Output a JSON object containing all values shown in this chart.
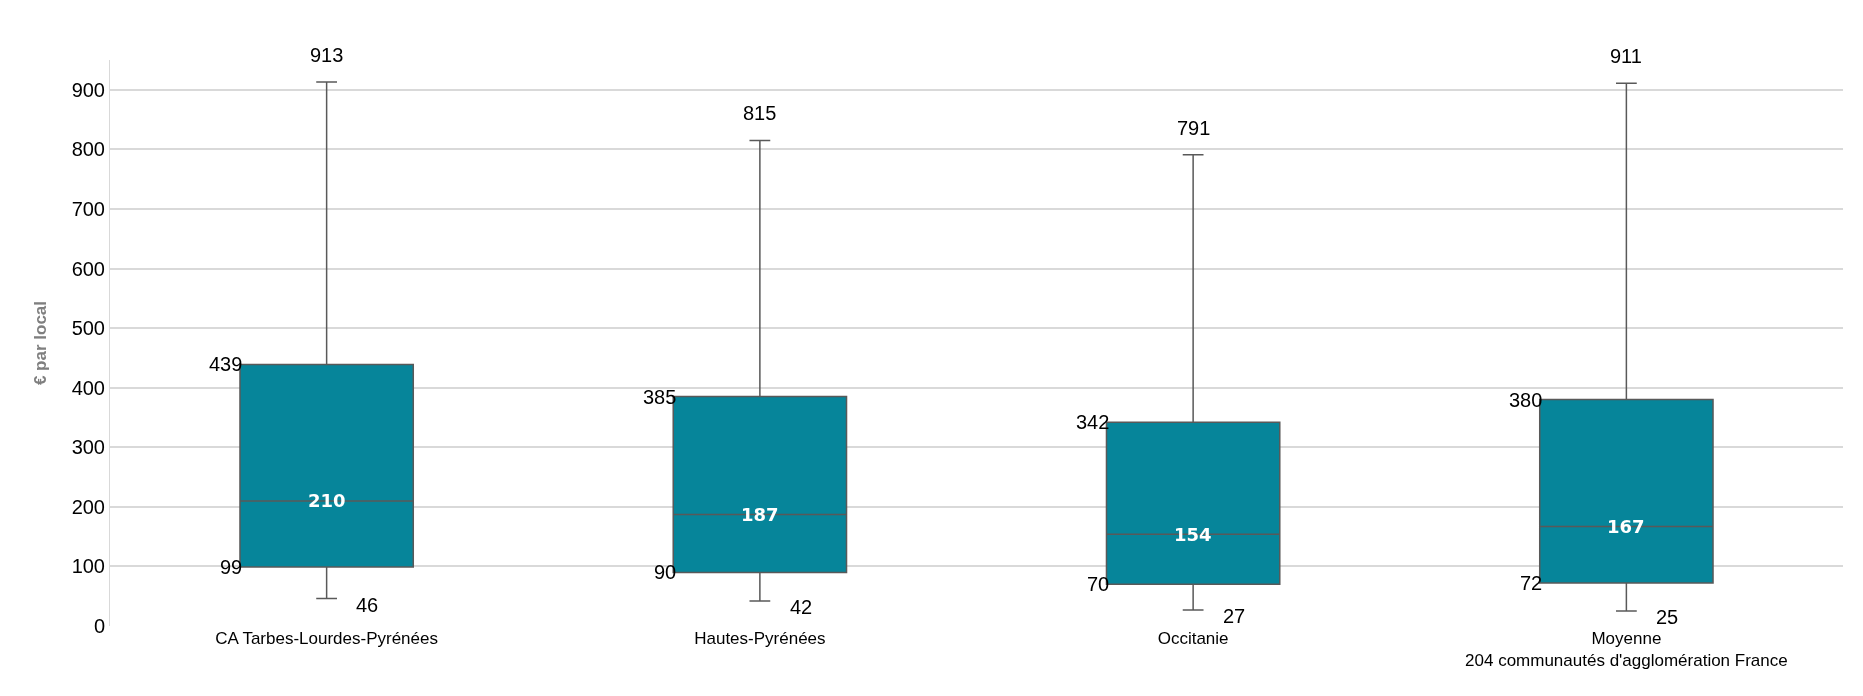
{
  "chart_data": {
    "type": "box",
    "ylabel": "€ par local",
    "categories": [
      "CA Tarbes-Lourdes-Pyrénées",
      "Hautes-Pyrénées",
      "Occitanie",
      "Moyenne\n204 communautés d'agglomération France"
    ],
    "boxes": [
      {
        "low": 46,
        "q1": 99,
        "median": 210,
        "q3": 439,
        "high": 913
      },
      {
        "low": 42,
        "q1": 90,
        "median": 187,
        "q3": 385,
        "high": 815
      },
      {
        "low": 27,
        "q1": 70,
        "median": 154,
        "q3": 342,
        "high": 791
      },
      {
        "low": 25,
        "q1": 72,
        "median": 167,
        "q3": 380,
        "high": 911
      }
    ],
    "color": "#06859a",
    "ylim": [
      0,
      950
    ],
    "yticks": [
      0,
      100,
      200,
      300,
      400,
      500,
      600,
      700,
      800,
      900
    ],
    "grid": "y",
    "annotations": [
      {
        "text": "913",
        "x": "CA Tarbes-Lourdes-Pyrénées",
        "y": 913
      },
      "439",
      {
        "text": "210",
        "x": "CA Tarbes-Lourdes-Pyrénées",
        "y": 210
      },
      "99",
      {
        "text": "46",
        "x": "CA Tarbes-Lourdes-Pyrénées",
        "y": 46
      },
      {
        "text": "815",
        "x": "Hautes-Pyrénées",
        "y": 815
      },
      "385",
      {
        "text": "187",
        "x": "Hautes-Pyrénées",
        "y": 187
      },
      "90",
      {
        "text": "42",
        "x": "Hautes-Pyrénées",
        "y": 42
      },
      {
        "text": "791",
        "x": "Occitanie",
        "y": 791
      },
      "342",
      {
        "text": "154",
        "x": "Occitanie",
        "y": 154
      },
      "70",
      {
        "text": "27",
        "x": "Occitanie",
        "y": 27
      },
      {
        "text": "911",
        "x": "Moyenne\n204 communautés d'agglomération France",
        "y": 911
      },
      "380",
      {
        "text": "167",
        "x": "Moyenne\n204 communautés d'agglomération France",
        "y": 167
      },
      "72",
      {
        "text": "25",
        "x": "Moyenne\n204 communautés d'agglomération France",
        "y": 25
      }
    ]
  }
}
